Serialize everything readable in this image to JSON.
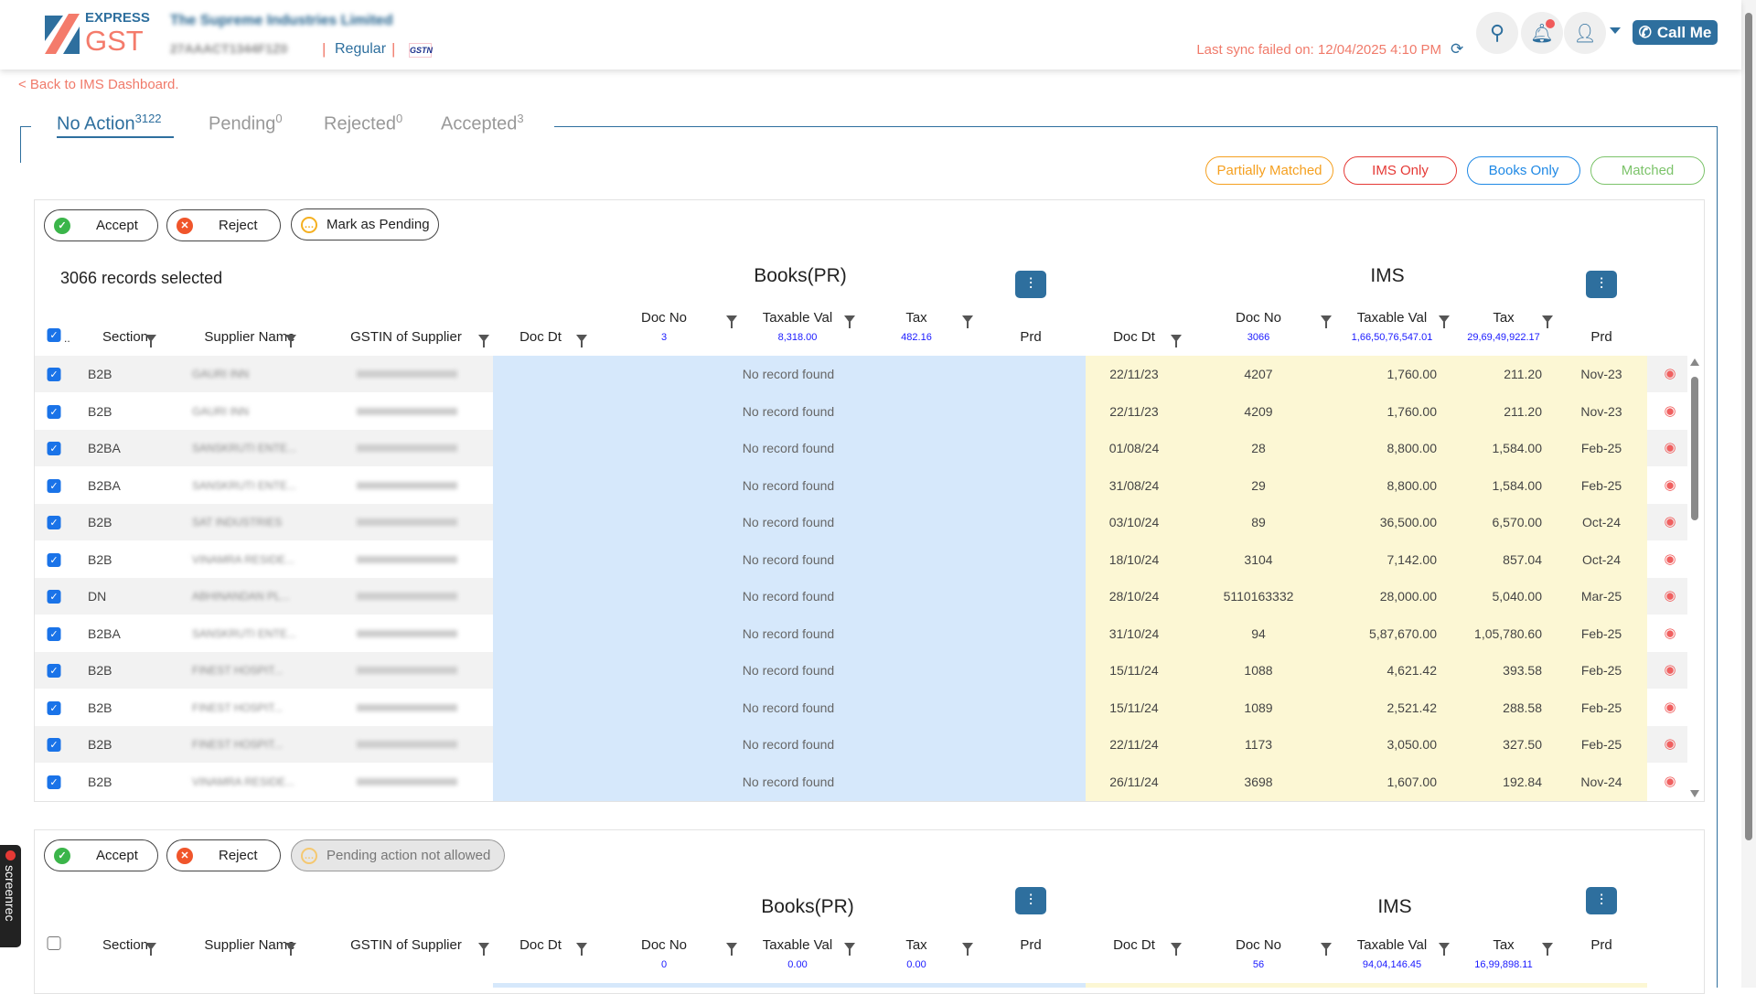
{
  "header": {
    "logo_top": "EXPRESS",
    "logo_bottom": "GST",
    "company": "The Supreme Industries Limited",
    "gstin": "27AAACT1344F1Z0",
    "registration_type": "Regular",
    "gsn_badge": "GSTN",
    "sync_status": "Last sync failed on: 12/04/2025 4:10 PM",
    "call_me": "Call Me"
  },
  "back_link": "< Back to IMS Dashboard.",
  "tabs": [
    {
      "label": "No Action",
      "count": "3122",
      "active": true
    },
    {
      "label": "Pending",
      "count": "0"
    },
    {
      "label": "Rejected",
      "count": "0"
    },
    {
      "label": "Accepted",
      "count": "3"
    }
  ],
  "filters": [
    {
      "label": "Partially Matched",
      "color": "#f5a020"
    },
    {
      "label": "IMS Only",
      "color": "#e53935"
    },
    {
      "label": "Books Only",
      "color": "#1e88e5"
    },
    {
      "label": "Matched",
      "color": "#7cc36a"
    }
  ],
  "colors": {
    "brand": "#2e6f9e",
    "accent": "#f07a6a",
    "books_bg": "#d6e8fb",
    "ims_bg": "#fcf7d4"
  },
  "table1": {
    "actions": {
      "accept": "Accept",
      "reject": "Reject",
      "pending": "Mark as Pending"
    },
    "selected_text": "3066 records selected",
    "books_title": "Books(PR)",
    "ims_title": "IMS",
    "columns": {
      "section": "Section",
      "supplier": "Supplier Name",
      "gstin": "GSTIN of Supplier",
      "doc_dt": "Doc Dt",
      "doc_no": "Doc No",
      "taxable": "Taxable Val",
      "tax": "Tax",
      "prd": "Prd"
    },
    "books_sums": {
      "doc_no": "3",
      "taxable": "8,318.00",
      "tax": "482.16"
    },
    "ims_sums": {
      "doc_no": "3066",
      "taxable": "1,66,50,76,547.01",
      "tax": "29,69,49,922.17"
    },
    "no_record": "No record found",
    "rows": [
      {
        "section": "B2B",
        "supplier": "GAURI INN",
        "doc_dt": "22/11/23",
        "doc_no": "4207",
        "taxable": "1,760.00",
        "tax": "211.20",
        "prd": "Nov-23"
      },
      {
        "section": "B2B",
        "supplier": "GAURI INN",
        "doc_dt": "22/11/23",
        "doc_no": "4209",
        "taxable": "1,760.00",
        "tax": "211.20",
        "prd": "Nov-23"
      },
      {
        "section": "B2BA",
        "supplier": "SANSKRUTI ENTE...",
        "doc_dt": "01/08/24",
        "doc_no": "28",
        "taxable": "8,800.00",
        "tax": "1,584.00",
        "prd": "Feb-25"
      },
      {
        "section": "B2BA",
        "supplier": "SANSKRUTI ENTE...",
        "doc_dt": "31/08/24",
        "doc_no": "29",
        "taxable": "8,800.00",
        "tax": "1,584.00",
        "prd": "Feb-25"
      },
      {
        "section": "B2B",
        "supplier": "SAT INDUSTRIES",
        "doc_dt": "03/10/24",
        "doc_no": "89",
        "taxable": "36,500.00",
        "tax": "6,570.00",
        "prd": "Oct-24"
      },
      {
        "section": "B2B",
        "supplier": "VINAMRA RESIDE...",
        "doc_dt": "18/10/24",
        "doc_no": "3104",
        "taxable": "7,142.00",
        "tax": "857.04",
        "prd": "Oct-24"
      },
      {
        "section": "DN",
        "supplier": "ABHINANDAN PL...",
        "doc_dt": "28/10/24",
        "doc_no": "5110163332",
        "taxable": "28,000.00",
        "tax": "5,040.00",
        "prd": "Mar-25"
      },
      {
        "section": "B2BA",
        "supplier": "SANSKRUTI ENTE...",
        "doc_dt": "31/10/24",
        "doc_no": "94",
        "taxable": "5,87,670.00",
        "tax": "1,05,780.60",
        "prd": "Feb-25"
      },
      {
        "section": "B2B",
        "supplier": "FINEST HOSPIT...",
        "doc_dt": "15/11/24",
        "doc_no": "1088",
        "taxable": "4,621.42",
        "tax": "393.58",
        "prd": "Feb-25"
      },
      {
        "section": "B2B",
        "supplier": "FINEST HOSPIT...",
        "doc_dt": "15/11/24",
        "doc_no": "1089",
        "taxable": "2,521.42",
        "tax": "288.58",
        "prd": "Feb-25"
      },
      {
        "section": "B2B",
        "supplier": "FINEST HOSPIT...",
        "doc_dt": "22/11/24",
        "doc_no": "1173",
        "taxable": "3,050.00",
        "tax": "327.50",
        "prd": "Feb-25"
      },
      {
        "section": "B2B",
        "supplier": "VINAMRA RESIDE...",
        "doc_dt": "26/11/24",
        "doc_no": "3698",
        "taxable": "1,607.00",
        "tax": "192.84",
        "prd": "Nov-24"
      }
    ]
  },
  "table2": {
    "actions": {
      "accept": "Accept",
      "reject": "Reject",
      "pending": "Pending action not allowed"
    },
    "books_title": "Books(PR)",
    "ims_title": "IMS",
    "books_sums": {
      "doc_no": "0",
      "taxable": "0.00",
      "tax": "0.00"
    },
    "ims_sums": {
      "doc_no": "56",
      "taxable": "94,04,146.45",
      "tax": "16,99,898.11"
    }
  },
  "recorder": "screenrec"
}
